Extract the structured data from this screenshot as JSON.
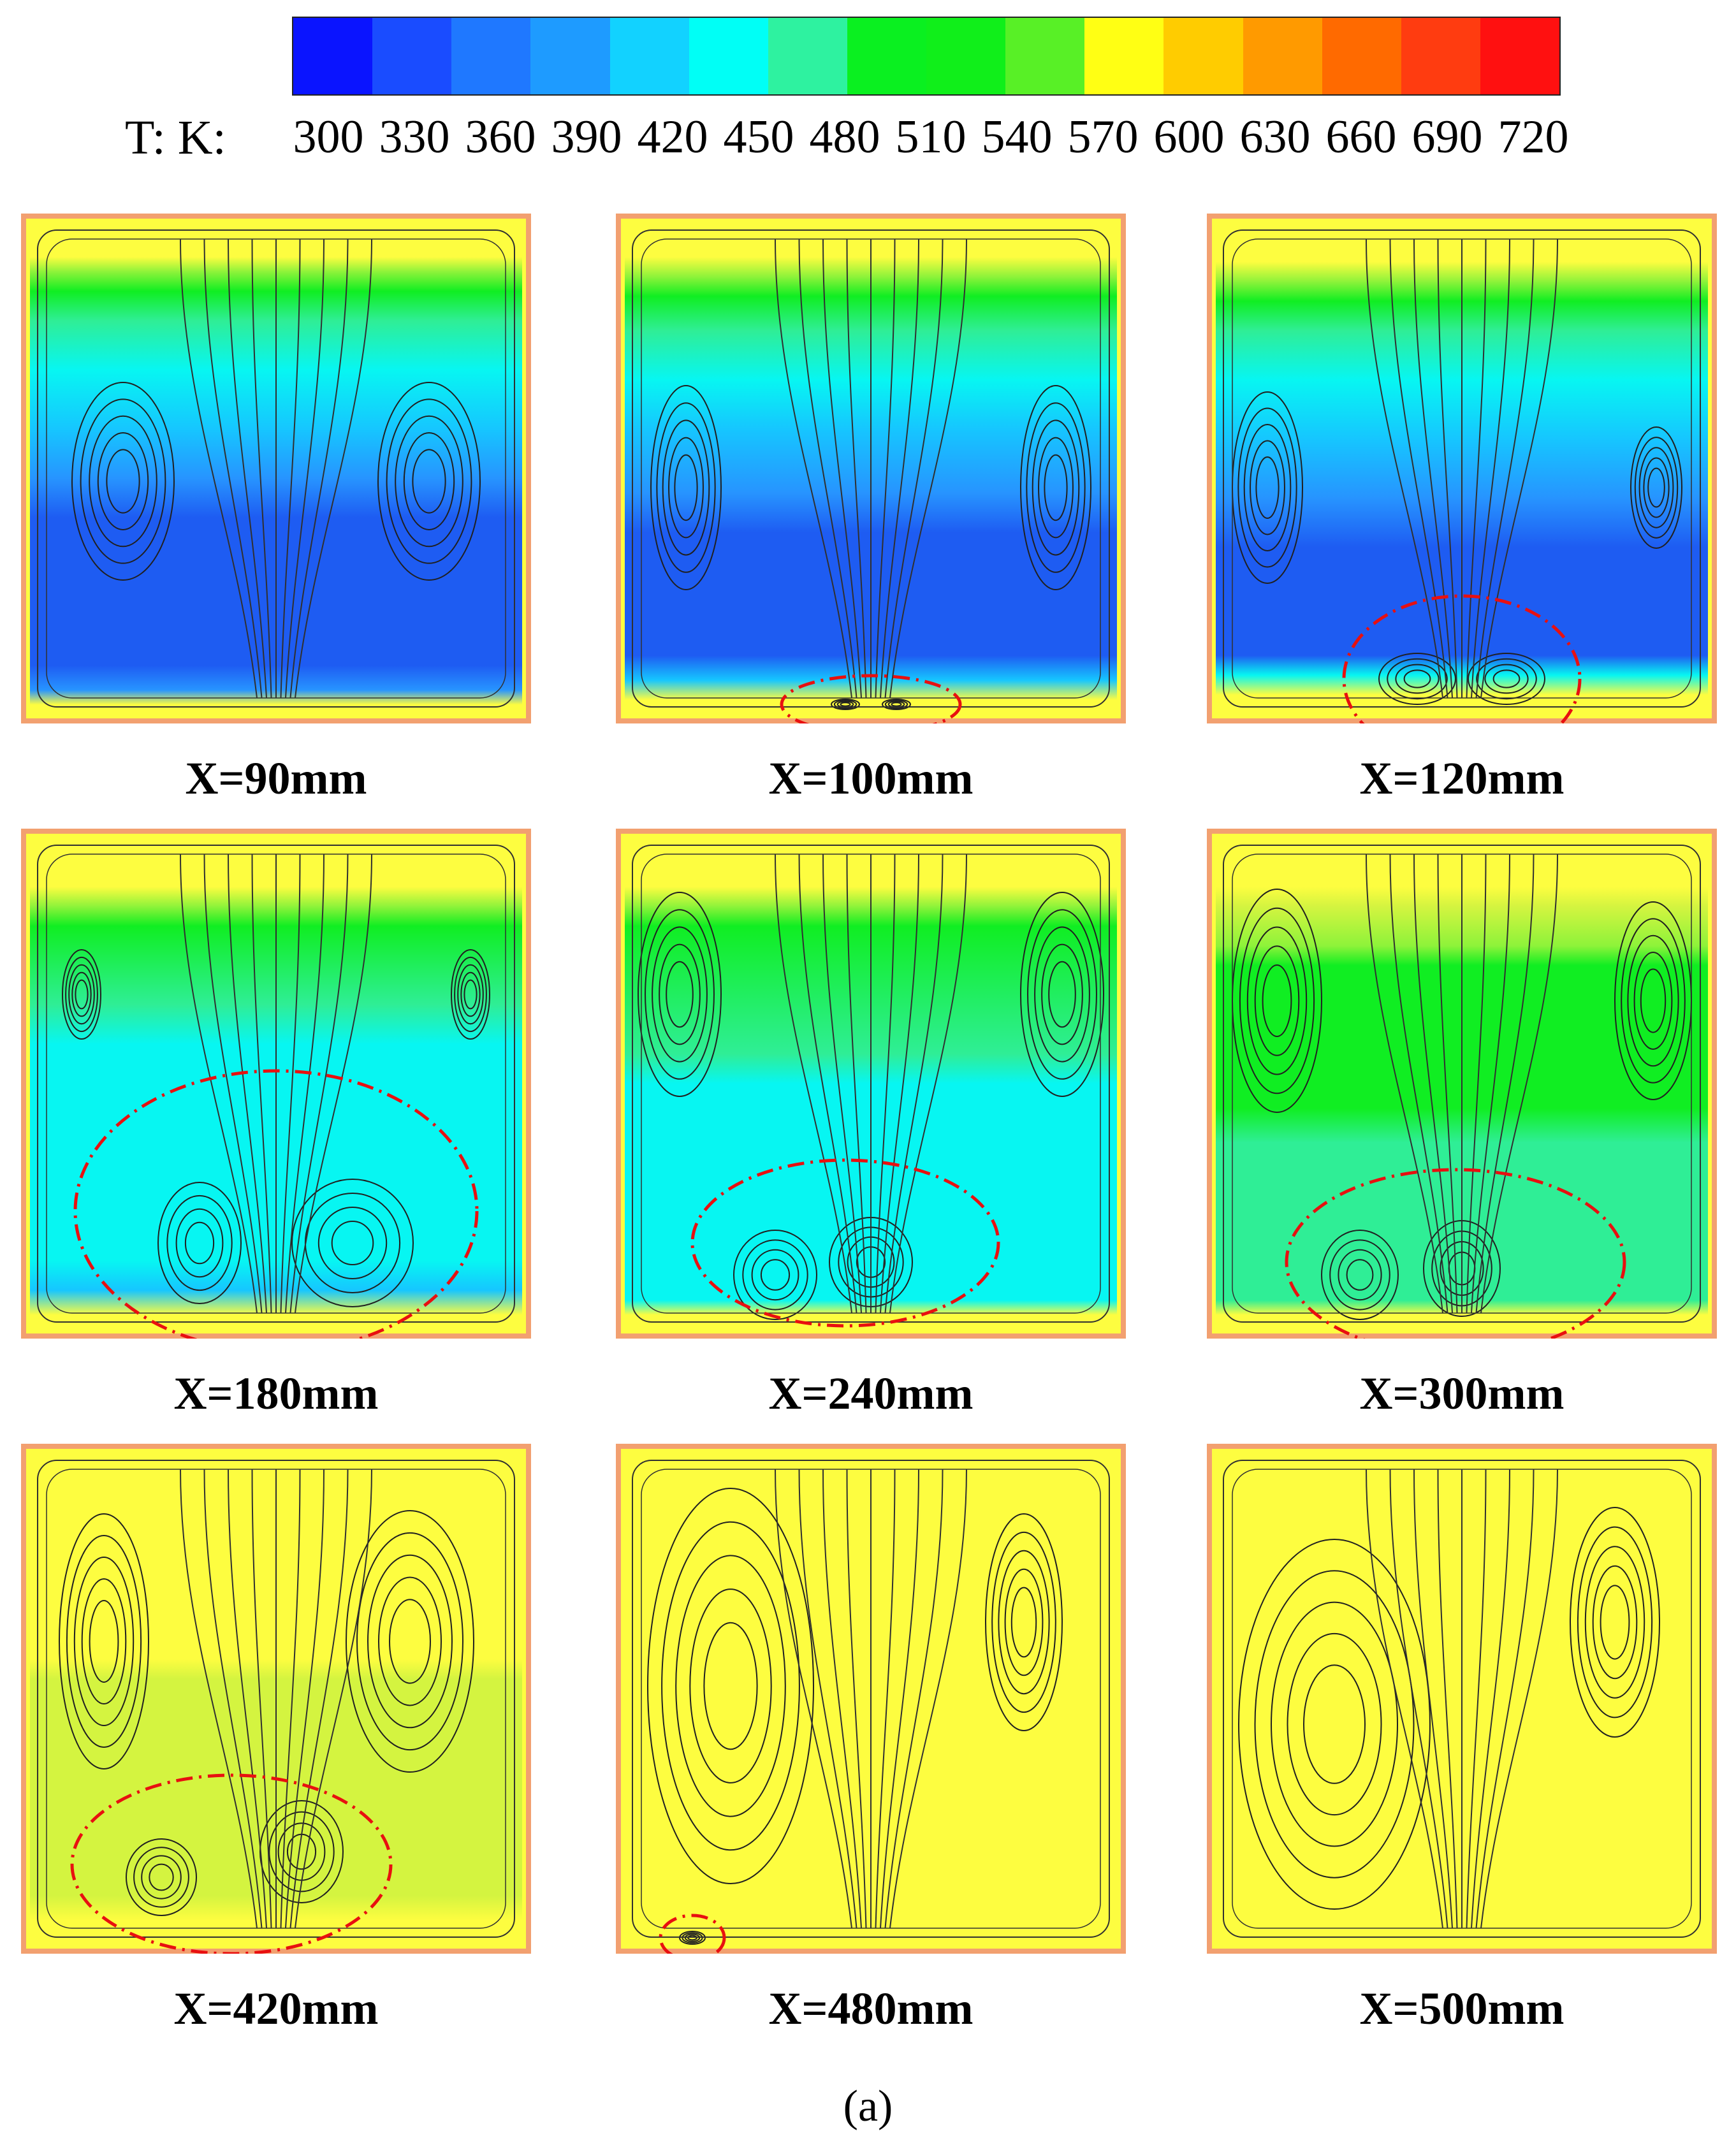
{
  "colorbar": {
    "label": "T: K:",
    "ticks": [
      "300",
      "330",
      "360",
      "390",
      "420",
      "450",
      "480",
      "510",
      "540",
      "570",
      "600",
      "630",
      "660",
      "690",
      "720"
    ],
    "colors": [
      "#0a14ff",
      "#1a4cff",
      "#1f78ff",
      "#1e9bff",
      "#12d2ff",
      "#00fff6",
      "#2ef2a0",
      "#0af020",
      "#10ef1a",
      "#58f026",
      "#ffff14",
      "#ffcc00",
      "#ff9a00",
      "#ff6a00",
      "#ff3c10",
      "#ff1010"
    ]
  },
  "panels": [
    {
      "caption": "X=90mm"
    },
    {
      "caption": "X=100mm"
    },
    {
      "caption": "X=120mm"
    },
    {
      "caption": "X=180mm"
    },
    {
      "caption": "X=240mm"
    },
    {
      "caption": "X=300mm"
    },
    {
      "caption": "X=420mm"
    },
    {
      "caption": "X=480mm"
    },
    {
      "caption": "X=500mm"
    }
  ],
  "sub_label": "(a)"
}
